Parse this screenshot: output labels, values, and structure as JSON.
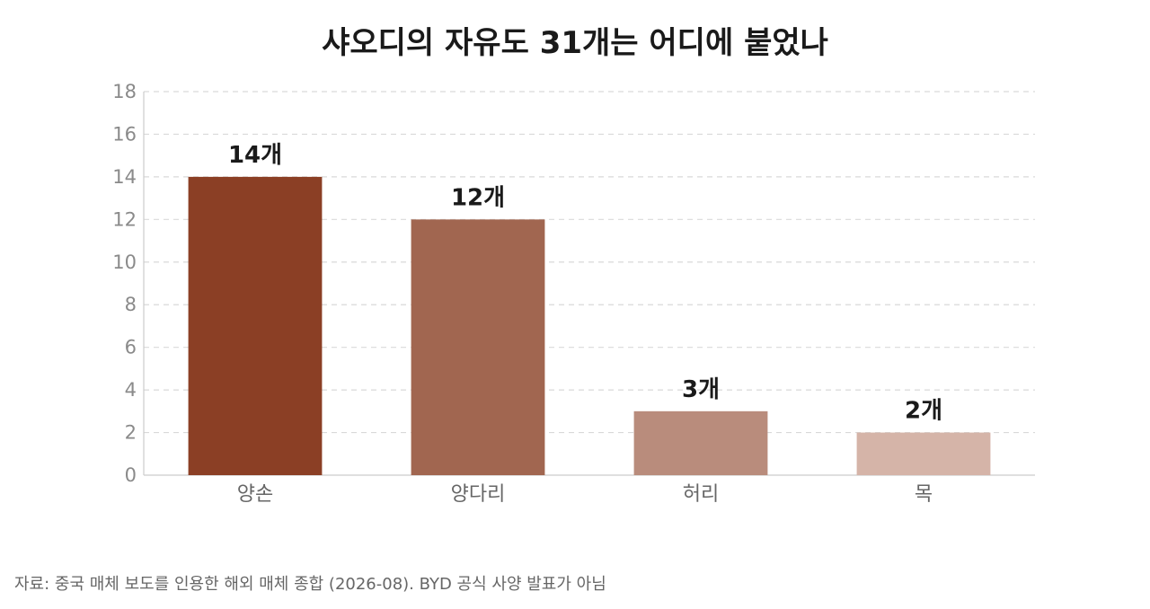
{
  "title": "샤오디의 자유도 31개는 어디에 붙었나",
  "source": "자료: 중국 매체 보도를 인용한 해외 매체 종합 (2026-08). BYD 공식 사양 발표가 아님",
  "chart_data": {
    "type": "bar",
    "title": "샤오디의 자유도 31개는 어디에 붙었나",
    "xlabel": "",
    "ylabel": "",
    "categories": [
      "양손",
      "양다리",
      "허리",
      "목"
    ],
    "values": [
      14,
      12,
      3,
      2
    ],
    "data_labels": [
      "14개",
      "12개",
      "3개",
      "2개"
    ],
    "colors": [
      "#8b3f25",
      "#a16650",
      "#b98c7c",
      "#d5b4a8"
    ],
    "ylim": [
      0,
      18
    ],
    "yticks": [
      0,
      2,
      4,
      6,
      8,
      10,
      12,
      14,
      16,
      18
    ],
    "grid": true,
    "legend": "none"
  }
}
